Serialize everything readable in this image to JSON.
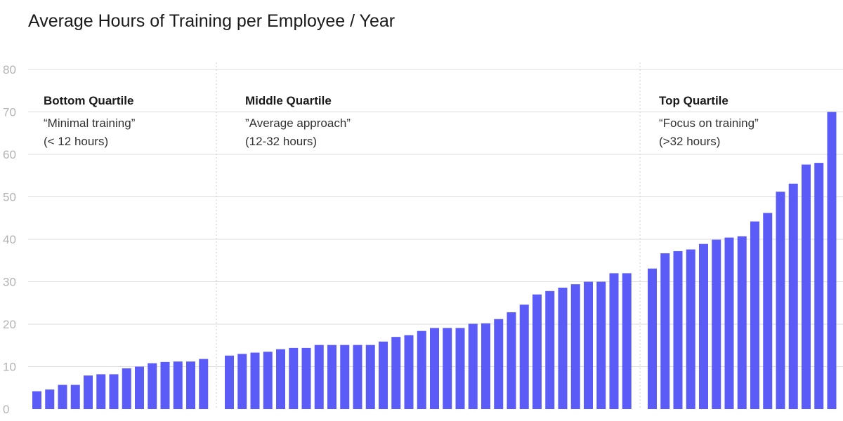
{
  "title": "Average Hours of Training per Employee / Year",
  "colors": {
    "bar": "#5b5bf7",
    "grid": "#dcdcdc",
    "divider": "#cfcfcf",
    "tick": "#b3b3b3"
  },
  "quartiles": [
    {
      "title": "Bottom Quartile",
      "quote": "“Minimal training”",
      "range": "(< 12 hours)"
    },
    {
      "title": "Middle Quartile",
      "quote": "”Average approach”",
      "range": "(12-32 hours)"
    },
    {
      "title": "Top Quartile",
      "quote": "“Focus on training”",
      "range": "(>32 hours)"
    }
  ],
  "chart_data": {
    "type": "bar",
    "title": "Average Hours of Training per Employee / Year",
    "xlabel": "",
    "ylabel": "",
    "ylim": [
      0,
      80
    ],
    "yticks": [
      0,
      10,
      20,
      30,
      40,
      50,
      60,
      70,
      80
    ],
    "grid": true,
    "groups": [
      {
        "name": "Bottom Quartile",
        "values": [
          4.2,
          4.6,
          5.7,
          5.7,
          7.9,
          8.2,
          8.2,
          9.6,
          10.0,
          10.8,
          11.1,
          11.2,
          11.2,
          11.8
        ]
      },
      {
        "name": "Middle Quartile",
        "values": [
          12.6,
          13.0,
          13.3,
          13.5,
          14.1,
          14.4,
          14.4,
          15.1,
          15.1,
          15.1,
          15.1,
          15.1,
          15.9,
          17.0,
          17.4,
          18.4,
          19.1,
          19.1,
          19.1,
          20.1,
          20.2,
          21.2,
          22.8,
          24.6,
          27.0,
          27.8,
          28.6,
          29.4,
          30.0,
          30.0,
          32.0,
          32.0
        ]
      },
      {
        "name": "Top Quartile",
        "values": [
          33.1,
          36.7,
          37.2,
          37.6,
          38.9,
          39.9,
          40.4,
          40.7,
          44.2,
          46.2,
          51.2,
          53.1,
          57.6,
          58.0,
          70.0
        ]
      }
    ]
  }
}
